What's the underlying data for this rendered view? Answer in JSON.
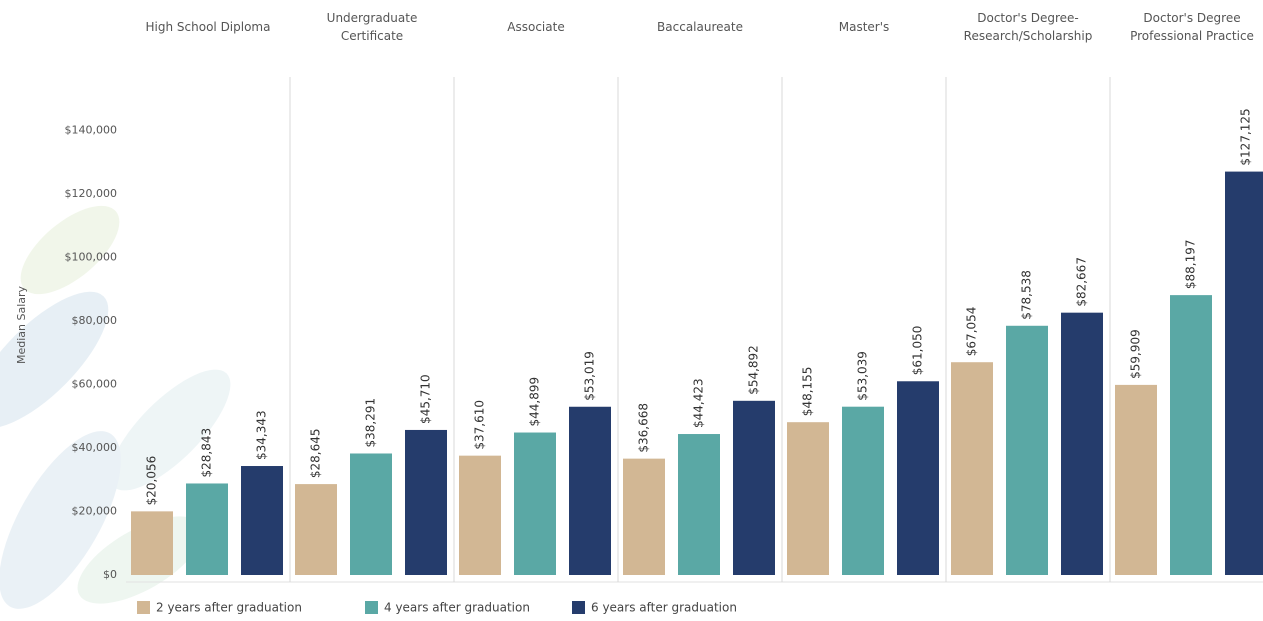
{
  "chart_data": {
    "type": "bar",
    "y_label": "Median Salary",
    "categories": [
      "High School Diploma",
      "Undergraduate Certificate",
      "Associate",
      "Baccalaureate",
      "Master's",
      "Doctor's Degree-Research/Scholarship",
      "Doctor's Degree Professional Practice"
    ],
    "series": [
      {
        "name": "2 years after graduation",
        "color": "#d2b794",
        "values": [
          20056,
          28645,
          37610,
          36668,
          48155,
          67054,
          59909
        ],
        "value_labels": [
          "$20,056",
          "$28,645",
          "$37,610",
          "$36,668",
          "$48,155",
          "$67,054",
          "$59,909"
        ]
      },
      {
        "name": "4 years after graduation",
        "color": "#5aa8a5",
        "values": [
          28843,
          38291,
          44899,
          44423,
          53039,
          78538,
          88197
        ],
        "value_labels": [
          "$28,843",
          "$38,291",
          "$44,899",
          "$44,423",
          "$53,039",
          "$78,538",
          "$88,197"
        ]
      },
      {
        "name": "6 years after graduation",
        "color": "#253c6c",
        "values": [
          34343,
          45710,
          53019,
          54892,
          61050,
          82667,
          127125
        ],
        "value_labels": [
          "$34,343",
          "$45,710",
          "$53,019",
          "$54,892",
          "$61,050",
          "$82,667",
          "$127,125"
        ]
      }
    ],
    "ylim": [
      0,
      150000
    ],
    "yticks": [
      {
        "value": 0,
        "label": "$0"
      },
      {
        "value": 20000,
        "label": "$20,000"
      },
      {
        "value": 40000,
        "label": "$40,000"
      },
      {
        "value": 60000,
        "label": "$60,000"
      },
      {
        "value": 80000,
        "label": "$80,000"
      },
      {
        "value": 100000,
        "label": "$100,000"
      },
      {
        "value": 120000,
        "label": "$120,000"
      },
      {
        "value": 140000,
        "label": "$140,000"
      }
    ],
    "grid": false,
    "legend": "bottom"
  }
}
